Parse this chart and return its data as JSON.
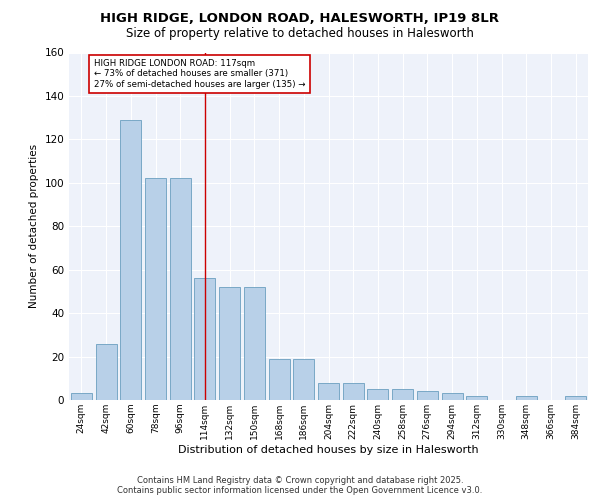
{
  "title_line1": "HIGH RIDGE, LONDON ROAD, HALESWORTH, IP19 8LR",
  "title_line2": "Size of property relative to detached houses in Halesworth",
  "xlabel": "Distribution of detached houses by size in Halesworth",
  "ylabel": "Number of detached properties",
  "footer_line1": "Contains HM Land Registry data © Crown copyright and database right 2025.",
  "footer_line2": "Contains public sector information licensed under the Open Government Licence v3.0.",
  "annotation_line1": "HIGH RIDGE LONDON ROAD: 117sqm",
  "annotation_line2": "← 73% of detached houses are smaller (371)",
  "annotation_line3": "27% of semi-detached houses are larger (135) →",
  "bar_color": "#b8d0e8",
  "bar_edge_color": "#6a9fc0",
  "ref_line_color": "#cc0000",
  "ref_line_x": 5,
  "background_color": "#eef2fa",
  "grid_color": "#ffffff",
  "categories": [
    "24sqm",
    "42sqm",
    "60sqm",
    "78sqm",
    "96sqm",
    "114sqm",
    "132sqm",
    "150sqm",
    "168sqm",
    "186sqm",
    "204sqm",
    "222sqm",
    "240sqm",
    "258sqm",
    "276sqm",
    "294sqm",
    "312sqm",
    "330sqm",
    "348sqm",
    "366sqm",
    "384sqm"
  ],
  "values": [
    3,
    26,
    129,
    102,
    102,
    56,
    52,
    52,
    19,
    19,
    8,
    8,
    5,
    5,
    4,
    3,
    2,
    0,
    2,
    0,
    2
  ],
  "ylim": [
    0,
    160
  ],
  "yticks": [
    0,
    20,
    40,
    60,
    80,
    100,
    120,
    140,
    160
  ]
}
